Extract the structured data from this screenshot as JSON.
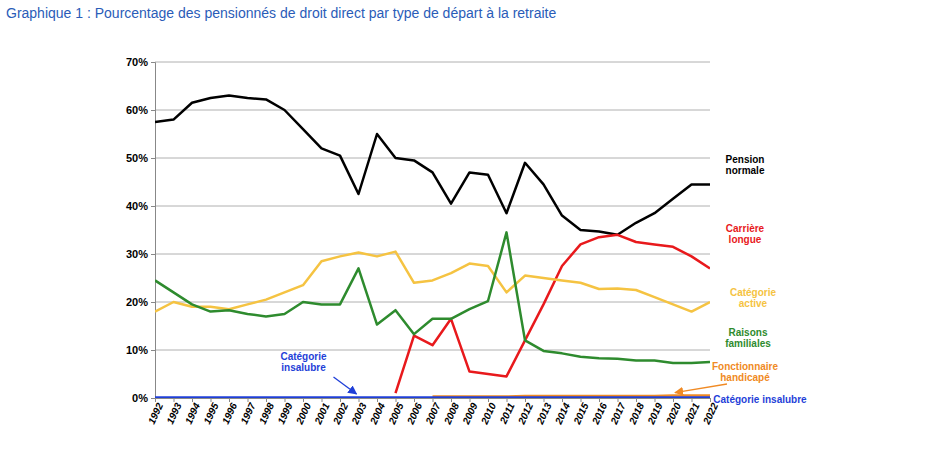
{
  "chart_data": {
    "type": "line",
    "title": "Graphique 1 : Pourcentage des pensionnés de droit direct par type de départ à la retraite",
    "x": [
      1992,
      1993,
      1994,
      1995,
      1996,
      1997,
      1998,
      1999,
      2000,
      2001,
      2002,
      2003,
      2004,
      2005,
      2006,
      2007,
      2008,
      2009,
      2010,
      2011,
      2012,
      2013,
      2014,
      2015,
      2016,
      2017,
      2018,
      2019,
      2020,
      2021,
      2022
    ],
    "xlim": [
      1992,
      2022
    ],
    "xticks": [
      1992,
      1993,
      1994,
      1995,
      1996,
      1997,
      1998,
      1999,
      2000,
      2001,
      2002,
      2003,
      2004,
      2005,
      2006,
      2007,
      2008,
      2009,
      2010,
      2011,
      2012,
      2013,
      2014,
      2015,
      2016,
      2017,
      2018,
      2019,
      2020,
      2021,
      2022
    ],
    "ylim": [
      0,
      70
    ],
    "yticks": [
      {
        "value": 0,
        "label": "0%"
      },
      {
        "value": 10,
        "label": "10%"
      },
      {
        "value": 20,
        "label": "20%"
      },
      {
        "value": 30,
        "label": "30%"
      },
      {
        "value": 40,
        "label": "40%"
      },
      {
        "value": 50,
        "label": "50%"
      },
      {
        "value": 60,
        "label": "60%"
      },
      {
        "value": 70,
        "label": "70%"
      }
    ],
    "grid": true,
    "series": [
      {
        "name": "Pension normale",
        "color": "#000000",
        "values": [
          57.5,
          58,
          61.5,
          62.5,
          63,
          62.5,
          62.2,
          60,
          56,
          52,
          50.5,
          42.5,
          55,
          50,
          49.5,
          47,
          40.5,
          47,
          46.5,
          38.5,
          49,
          44.5,
          38,
          35,
          34.7,
          34,
          36.5,
          38.5,
          41.5,
          44.5,
          44.5
        ]
      },
      {
        "name": "Carrière longue",
        "color": "#e8191c",
        "values": [
          null,
          null,
          null,
          null,
          null,
          null,
          null,
          null,
          null,
          null,
          null,
          null,
          null,
          1,
          13,
          11,
          16.5,
          5.5,
          5,
          4.5,
          12,
          19.5,
          27.5,
          32,
          33.5,
          34,
          32.5,
          32,
          31.5,
          29.5,
          27
        ]
      },
      {
        "name": "Catégorie active",
        "color": "#f5c342",
        "values": [
          18,
          20,
          19,
          19,
          18.5,
          19.5,
          20.5,
          22,
          23.5,
          28.5,
          29.5,
          30.3,
          29.5,
          30.5,
          24,
          24.5,
          26,
          28,
          27.5,
          22,
          25.5,
          25,
          24.5,
          24,
          22.7,
          22.8,
          22.5,
          21,
          19.5,
          18,
          20
        ]
      },
      {
        "name": "Raisons familiales",
        "color": "#2e8b2e",
        "values": [
          24.5,
          22,
          19.5,
          18,
          18.3,
          17.5,
          17,
          17.5,
          20,
          19.5,
          19.5,
          27,
          15.3,
          18.3,
          13.3,
          16.5,
          16.5,
          18.5,
          20.2,
          34.5,
          12,
          9.8,
          9.3,
          8.6,
          8.3,
          8.2,
          7.8,
          7.8,
          7.3,
          7.3,
          7.5
        ]
      },
      {
        "name": "Fonctionnaire handicapé",
        "color": "#f08a24",
        "values": [
          null,
          null,
          null,
          null,
          null,
          null,
          null,
          null,
          null,
          null,
          null,
          null,
          null,
          null,
          null,
          0.3,
          0.3,
          0.3,
          0.3,
          0.3,
          0.4,
          0.4,
          0.4,
          0.4,
          0.4,
          0.4,
          0.4,
          0.4,
          0.5,
          0.5,
          0.5
        ]
      },
      {
        "name": "Catégorie insalubre",
        "color": "#1f3fd8",
        "values": [
          0.1,
          0.1,
          0.1,
          0.1,
          0.1,
          0.1,
          0.1,
          0.1,
          0.1,
          0.1,
          0.1,
          0.1,
          0.1,
          0.1,
          0.1,
          0.1,
          0.1,
          0.1,
          0.1,
          0.1,
          0.1,
          0.1,
          0.1,
          0.1,
          0.1,
          0.1,
          0.1,
          0.1,
          0.1,
          0.1,
          0.1
        ]
      }
    ],
    "annotations": [
      {
        "text": "Catégorie insalubre",
        "x": 2003,
        "y": 0,
        "color": "#1f3fd8"
      }
    ]
  }
}
